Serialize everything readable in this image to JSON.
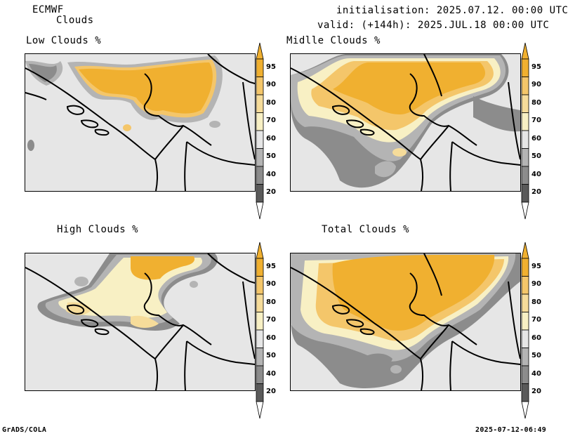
{
  "header": {
    "model": "ECMWF",
    "product": "Clouds",
    "init": "initialisation: 2025.07.12. 00:00 UTC",
    "valid": "valid: (+144h): 2025.JUL.18 00:00 UTC"
  },
  "panels": [
    {
      "title": "Low Clouds %"
    },
    {
      "title": "Midlle Clouds %"
    },
    {
      "title": "High Clouds %"
    },
    {
      "title": "Total Clouds %"
    }
  ],
  "colorbar": {
    "levels": [
      "95",
      "90",
      "80",
      "70",
      "60",
      "50",
      "40",
      "20"
    ],
    "colors": {
      "c95": "#f0b030",
      "c90": "#f4c66a",
      "c80": "#f6dc9a",
      "c70": "#f8f0c4",
      "c60": "#e6e6e6",
      "c50": "#b4b4b4",
      "c40": "#8c8c8c",
      "c20": "#5a5a5a"
    }
  },
  "footer": {
    "left": "GrADS/COLA",
    "right": "2025-07-12-06:49"
  }
}
